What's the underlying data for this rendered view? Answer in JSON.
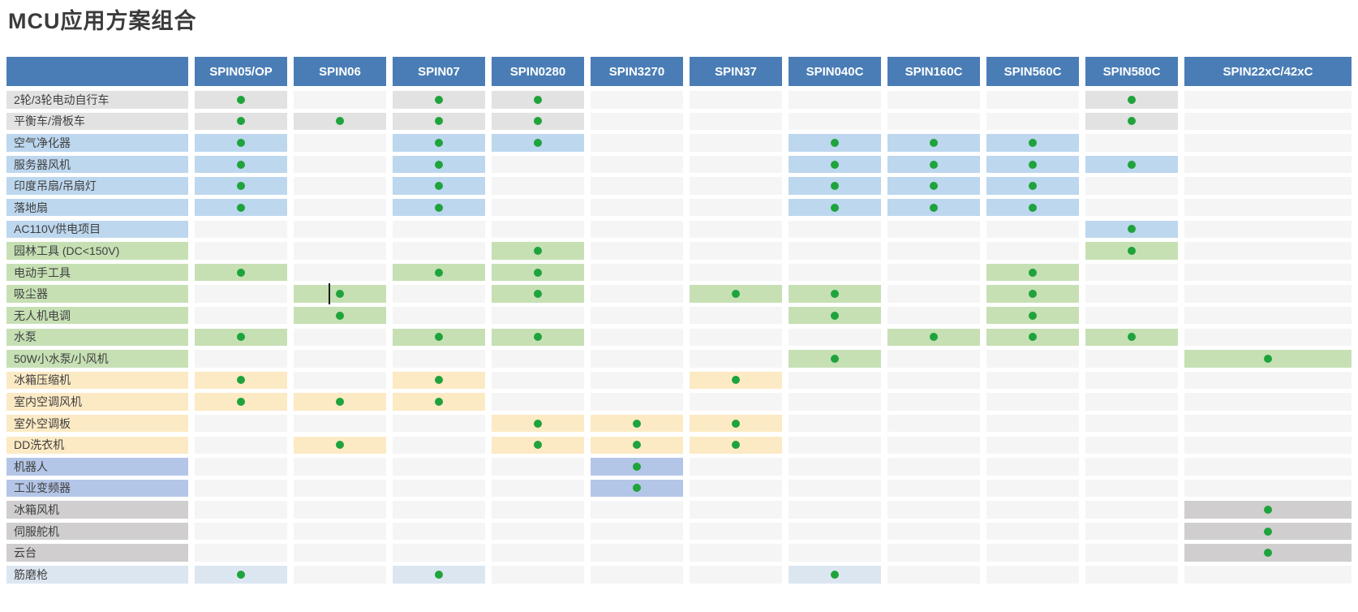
{
  "page": {
    "title": "MCU应用方案组合"
  },
  "palette": {
    "title_text": "#3b3b3b",
    "header_bg": "#4a7db5",
    "header_text": "#ffffff",
    "cell_plain": "#f5f5f6",
    "dot": "#1fa33c",
    "row_categories": {
      "gray": "#e2e2e2",
      "blue": "#bdd7ee",
      "green": "#c6e0b4",
      "yellow": "#fceac4",
      "purple": "#b4c6e7",
      "darkgray": "#d0cece",
      "lightblue": "#dce6f1"
    }
  },
  "chart_data": {
    "type": "table",
    "title": "MCU应用方案组合",
    "corner_label": "",
    "mark_symbol": "green-dot",
    "legend_position": "none",
    "columns": [
      "SPIN05/OP",
      "SPIN06",
      "SPIN07",
      "SPIN0280",
      "SPIN3270",
      "SPIN37",
      "SPIN040C",
      "SPIN160C",
      "SPIN560C",
      "SPIN580C",
      "SPIN22xC/42xC"
    ],
    "rows": [
      {
        "label": "2轮/3轮电动自行车",
        "category": "gray",
        "marked_columns": [
          0,
          2,
          3,
          9
        ]
      },
      {
        "label": "平衡车/滑板车",
        "category": "gray",
        "marked_columns": [
          0,
          1,
          2,
          3,
          9
        ]
      },
      {
        "label": "空气净化器",
        "category": "blue",
        "marked_columns": [
          0,
          2,
          3,
          6,
          7,
          8
        ]
      },
      {
        "label": "服务器风机",
        "category": "blue",
        "marked_columns": [
          0,
          2,
          6,
          7,
          8,
          9
        ]
      },
      {
        "label": "印度吊扇/吊扇灯",
        "category": "blue",
        "marked_columns": [
          0,
          2,
          6,
          7,
          8
        ]
      },
      {
        "label": "落地扇",
        "category": "blue",
        "marked_columns": [
          0,
          2,
          6,
          7,
          8
        ]
      },
      {
        "label": "AC110V供电项目",
        "category": "blue",
        "marked_columns": [
          9
        ]
      },
      {
        "label": "园林工具 (DC<150V)",
        "category": "green",
        "marked_columns": [
          3,
          9
        ]
      },
      {
        "label": "电动手工具",
        "category": "green",
        "marked_columns": [
          0,
          2,
          3,
          8
        ]
      },
      {
        "label": "吸尘器",
        "category": "green",
        "marked_columns": [
          1,
          3,
          5,
          6,
          8
        ]
      },
      {
        "label": "无人机电调",
        "category": "green",
        "marked_columns": [
          1,
          6,
          8
        ]
      },
      {
        "label": "水泵",
        "category": "green",
        "marked_columns": [
          0,
          2,
          3,
          7,
          8,
          9
        ]
      },
      {
        "label": "50W小水泵/小风机",
        "category": "green",
        "marked_columns": [
          6,
          10
        ]
      },
      {
        "label": "冰箱压缩机",
        "category": "yellow",
        "marked_columns": [
          0,
          2,
          5
        ]
      },
      {
        "label": "室内空调风机",
        "category": "yellow",
        "marked_columns": [
          0,
          1,
          2
        ]
      },
      {
        "label": "室外空调板",
        "category": "yellow",
        "marked_columns": [
          3,
          4,
          5
        ]
      },
      {
        "label": "DD洗衣机",
        "category": "yellow",
        "marked_columns": [
          1,
          3,
          4,
          5
        ]
      },
      {
        "label": "机器人",
        "category": "purple",
        "marked_columns": [
          4
        ]
      },
      {
        "label": "工业变频器",
        "category": "purple",
        "marked_columns": [
          4
        ]
      },
      {
        "label": "冰箱风机",
        "category": "darkgray",
        "marked_columns": [
          10
        ]
      },
      {
        "label": "伺服舵机",
        "category": "darkgray",
        "marked_columns": [
          10
        ]
      },
      {
        "label": "云台",
        "category": "darkgray",
        "marked_columns": [
          10
        ]
      },
      {
        "label": "筋磨枪",
        "category": "lightblue",
        "marked_columns": [
          0,
          2,
          6
        ]
      }
    ]
  },
  "artifacts": {
    "text_cursor": {
      "row_index": 9,
      "col_index": 1
    }
  }
}
